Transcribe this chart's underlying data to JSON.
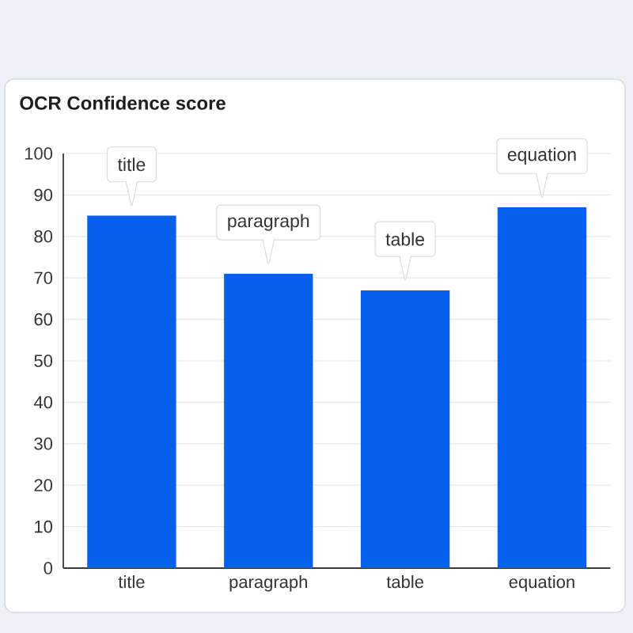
{
  "chart_data": {
    "type": "bar",
    "title": "OCR Confidence score",
    "categories": [
      "title",
      "paragraph",
      "table",
      "equation"
    ],
    "values": [
      85,
      71,
      67,
      87
    ],
    "color": "#0660eb",
    "ylim": [
      0,
      100
    ],
    "yticks": [
      0,
      10,
      20,
      30,
      40,
      50,
      60,
      70,
      80,
      90,
      100
    ],
    "grid": "y",
    "annotations": [
      {
        "text": "title",
        "x": "title",
        "y": 85
      },
      {
        "text": "paragraph",
        "x": "paragraph",
        "y": 71
      },
      {
        "text": "table",
        "x": "table",
        "y": 67
      },
      {
        "text": "equation",
        "x": "equation",
        "y": 87
      }
    ]
  }
}
